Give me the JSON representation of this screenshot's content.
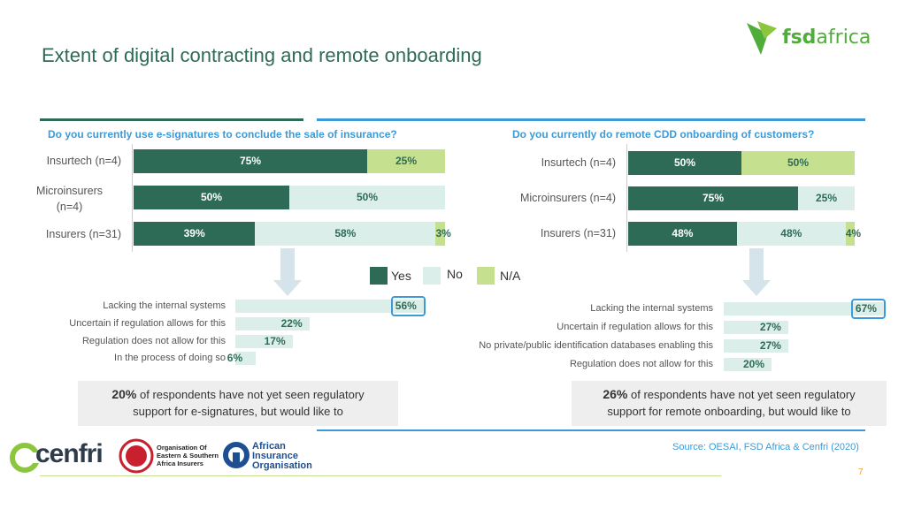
{
  "title": "Extent of digital contracting and remote onboarding",
  "logo": {
    "bold": "fsd",
    "light": "africa"
  },
  "colors": {
    "yes": "#2e6b57",
    "no": "#dceee9",
    "na": "#c5e08f",
    "accent": "#3c9ad6"
  },
  "legend": {
    "yes": "Yes",
    "no": "No",
    "na": "N/A"
  },
  "chart_data": [
    {
      "type": "bar",
      "title": "Do you currently use e-signatures to conclude the sale of insurance?",
      "categories": [
        "Insurtech (n=4)",
        "Microinsurers (n=4)",
        "Insurers (n=31)"
      ],
      "stacked": true,
      "series": [
        {
          "name": "Yes",
          "values": [
            75,
            50,
            39
          ],
          "labels": [
            "75%",
            "50%",
            "39%"
          ]
        },
        {
          "name": "No",
          "values": [
            0,
            50,
            58
          ],
          "labels": [
            "",
            "50%",
            "58%"
          ]
        },
        {
          "name": "N/A",
          "values": [
            25,
            0,
            3
          ],
          "labels": [
            "25%",
            "",
            "3%"
          ]
        }
      ]
    },
    {
      "type": "bar",
      "title": "Do you currently do remote CDD onboarding of customers?",
      "categories": [
        "Insurtech (n=4)",
        "Microinsurers (n=4)",
        "Insurers (n=31)"
      ],
      "stacked": true,
      "series": [
        {
          "name": "Yes",
          "values": [
            50,
            75,
            48
          ],
          "labels": [
            "50%",
            "75%",
            "48%"
          ]
        },
        {
          "name": "No",
          "values": [
            0,
            25,
            48
          ],
          "labels": [
            "",
            "25%",
            "48%"
          ]
        },
        {
          "name": "N/A",
          "values": [
            50,
            0,
            4
          ],
          "labels": [
            "50%",
            "",
            "4%"
          ]
        }
      ]
    },
    {
      "type": "bar",
      "categories": [
        "Lacking the internal systems",
        "Uncertain if regulation allows for this",
        "Regulation does not allow for this",
        "In the process of doing so"
      ],
      "values": [
        56,
        22,
        17,
        6
      ],
      "labels": [
        "56%",
        "22%",
        "17%",
        "6%"
      ]
    },
    {
      "type": "bar",
      "categories": [
        "Lacking the internal systems",
        "Uncertain if regulation allows for this",
        "No private/public identification databases enabling this",
        "Regulation does not allow for this"
      ],
      "values": [
        67,
        27,
        27,
        20
      ],
      "labels": [
        "67%",
        "27%",
        "27%",
        "20%"
      ]
    }
  ],
  "left_labels": [
    "Insurtech (n=4)",
    "Microinsurers",
    "(n=4)",
    "Insurers (n=31)"
  ],
  "callouts": [
    {
      "pct": "20%",
      "line1": " of respondents have not yet seen regulatory",
      "line2": "support for e-signatures, but would like to"
    },
    {
      "pct": "26%",
      "line1": " of respondents have not yet seen regulatory",
      "line2": "support for remote onboarding, but would like to"
    }
  ],
  "partners": {
    "cenfri": "cenfri",
    "oesai": [
      "Organisation Of",
      "Eastern & Southern",
      "Africa Insurers"
    ],
    "aio": [
      "African",
      "Insurance",
      "Organisation"
    ]
  },
  "source": "Source: OESAI, FSD Africa & Cenfri (2020)",
  "page_number": "7"
}
